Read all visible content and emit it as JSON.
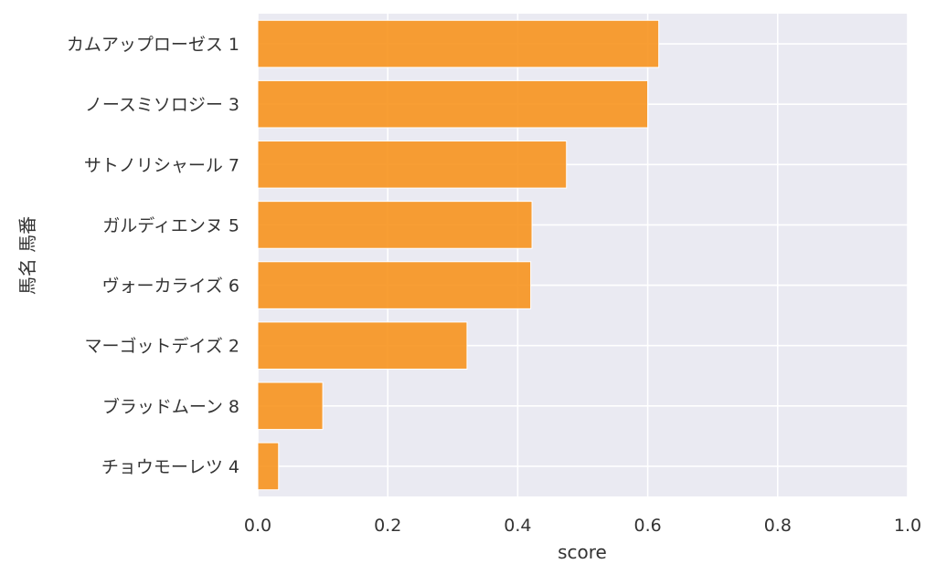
{
  "chart_data": {
    "type": "bar",
    "orientation": "horizontal",
    "categories": [
      "カムアップローゼス 1",
      "ノースミソロジー 3",
      "サトノリシャール 7",
      "ガルディエンヌ 5",
      "ヴォーカライズ 6",
      "マーゴットデイズ 2",
      "ブラッドムーン 8",
      "チョウモーレツ 4"
    ],
    "values": [
      0.617,
      0.6,
      0.475,
      0.422,
      0.42,
      0.322,
      0.1,
      0.032
    ],
    "xlabel": "score",
    "ylabel": "馬名 馬番",
    "xlim": [
      0,
      1
    ],
    "xticks": [
      "0.0",
      "0.2",
      "0.4",
      "0.6",
      "0.8",
      "1.0"
    ],
    "grid": true,
    "colors": {
      "bar": "#f7931e",
      "plot_background": "#eaeaf2",
      "grid": "#ffffff"
    }
  }
}
